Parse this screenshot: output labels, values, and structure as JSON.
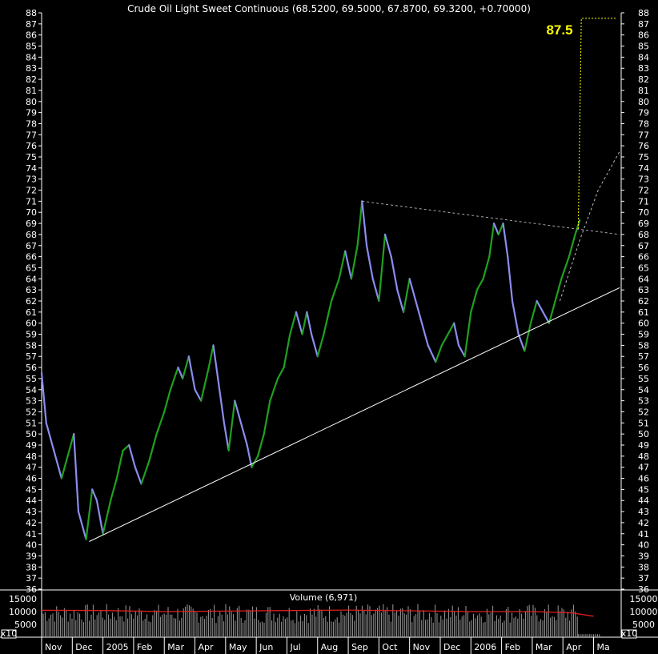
{
  "chart_data": {
    "type": "bar",
    "title": "Crude Oil Light Sweet Continuous (68.5200, 69.5000, 67.8700, 69.3200, +0.70000)",
    "target_label": "87.5",
    "y_ticks": [
      36,
      37,
      38,
      39,
      40,
      41,
      42,
      43,
      44,
      45,
      46,
      47,
      48,
      49,
      50,
      51,
      52,
      53,
      54,
      55,
      56,
      57,
      58,
      59,
      60,
      61,
      62,
      63,
      64,
      65,
      66,
      67,
      68,
      69,
      70,
      71,
      72,
      73,
      74,
      75,
      76,
      77,
      78,
      79,
      80,
      81,
      82,
      83,
      84,
      85,
      86,
      87,
      88
    ],
    "ylim": [
      36,
      88
    ],
    "x_labels": [
      "Nov",
      "Dec",
      "2005",
      "Feb",
      "Mar",
      "Apr",
      "May",
      "Jun",
      "Jul",
      "Aug",
      "Sep",
      "Oct",
      "Nov",
      "Dec",
      "2006",
      "Feb",
      "Mar",
      "Apr",
      "Ma"
    ],
    "xlim": [
      0,
      18.9
    ],
    "price_path": [
      [
        0.0,
        55.5
      ],
      [
        0.15,
        51
      ],
      [
        0.4,
        48.5
      ],
      [
        0.65,
        46
      ],
      [
        0.85,
        48
      ],
      [
        1.05,
        50
      ],
      [
        1.2,
        43
      ],
      [
        1.45,
        40.5
      ],
      [
        1.65,
        45
      ],
      [
        1.8,
        44
      ],
      [
        2.0,
        41
      ],
      [
        2.25,
        44
      ],
      [
        2.45,
        46
      ],
      [
        2.65,
        48.5
      ],
      [
        2.85,
        49
      ],
      [
        3.05,
        47
      ],
      [
        3.25,
        45.5
      ],
      [
        3.5,
        47.5
      ],
      [
        3.75,
        50
      ],
      [
        4.0,
        52
      ],
      [
        4.2,
        54
      ],
      [
        4.45,
        56
      ],
      [
        4.6,
        55
      ],
      [
        4.8,
        57
      ],
      [
        5.0,
        54
      ],
      [
        5.2,
        53
      ],
      [
        5.45,
        56
      ],
      [
        5.6,
        58
      ],
      [
        5.75,
        55
      ],
      [
        5.95,
        51
      ],
      [
        6.1,
        48.5
      ],
      [
        6.3,
        53
      ],
      [
        6.5,
        51
      ],
      [
        6.7,
        49
      ],
      [
        6.85,
        47
      ],
      [
        7.05,
        48
      ],
      [
        7.25,
        50
      ],
      [
        7.45,
        53
      ],
      [
        7.7,
        55
      ],
      [
        7.9,
        56
      ],
      [
        8.1,
        59
      ],
      [
        8.3,
        61
      ],
      [
        8.5,
        59
      ],
      [
        8.65,
        61
      ],
      [
        8.8,
        59
      ],
      [
        9.0,
        57
      ],
      [
        9.2,
        59
      ],
      [
        9.45,
        62
      ],
      [
        9.7,
        64
      ],
      [
        9.9,
        66.5
      ],
      [
        10.1,
        64
      ],
      [
        10.3,
        67
      ],
      [
        10.45,
        71
      ],
      [
        10.6,
        67
      ],
      [
        10.8,
        64
      ],
      [
        11.0,
        62
      ],
      [
        11.2,
        68
      ],
      [
        11.4,
        66
      ],
      [
        11.6,
        63
      ],
      [
        11.8,
        61
      ],
      [
        12.0,
        64
      ],
      [
        12.2,
        62
      ],
      [
        12.4,
        60
      ],
      [
        12.6,
        58
      ],
      [
        12.85,
        56.5
      ],
      [
        13.05,
        58
      ],
      [
        13.25,
        59
      ],
      [
        13.45,
        60
      ],
      [
        13.6,
        58
      ],
      [
        13.8,
        57
      ],
      [
        14.0,
        61
      ],
      [
        14.2,
        63
      ],
      [
        14.4,
        64
      ],
      [
        14.6,
        66
      ],
      [
        14.75,
        69
      ],
      [
        14.9,
        68
      ],
      [
        15.05,
        69
      ],
      [
        15.2,
        66
      ],
      [
        15.35,
        62
      ],
      [
        15.55,
        59
      ],
      [
        15.75,
        57.5
      ],
      [
        15.95,
        60
      ],
      [
        16.15,
        62
      ],
      [
        16.35,
        61
      ],
      [
        16.55,
        60
      ],
      [
        16.75,
        62
      ],
      [
        16.95,
        64
      ],
      [
        17.2,
        66
      ],
      [
        17.4,
        68
      ],
      [
        17.55,
        69.3
      ]
    ],
    "trendlines": [
      {
        "style": "support",
        "points": [
          [
            1.55,
            40.3
          ],
          [
            18.85,
            63.2
          ]
        ]
      },
      {
        "style": "resistance",
        "points": [
          [
            10.45,
            71
          ],
          [
            18.85,
            68.0
          ]
        ]
      },
      {
        "style": "projection",
        "points": [
          [
            16.9,
            62
          ],
          [
            17.55,
            67.5
          ],
          [
            18.15,
            72
          ],
          [
            18.85,
            75.5
          ]
        ]
      },
      {
        "style": "target",
        "points": [
          [
            17.5,
            68.5
          ],
          [
            17.6,
            87.5
          ],
          [
            18.75,
            87.5
          ]
        ]
      }
    ],
    "volume": {
      "title": "Volume (6,971)",
      "y_ticks": [
        5000,
        10000,
        15000
      ],
      "ylim": [
        0,
        17500
      ],
      "unit_label": "x10",
      "avg_path": [
        [
          0,
          10500
        ],
        [
          2,
          10400
        ],
        [
          4,
          10000
        ],
        [
          6,
          10200
        ],
        [
          8,
          10400
        ],
        [
          10,
          10600
        ],
        [
          12,
          10300
        ],
        [
          14,
          10000
        ],
        [
          16,
          10000
        ],
        [
          17.3,
          9500
        ],
        [
          18.0,
          8200
        ]
      ],
      "level": 10000
    }
  }
}
